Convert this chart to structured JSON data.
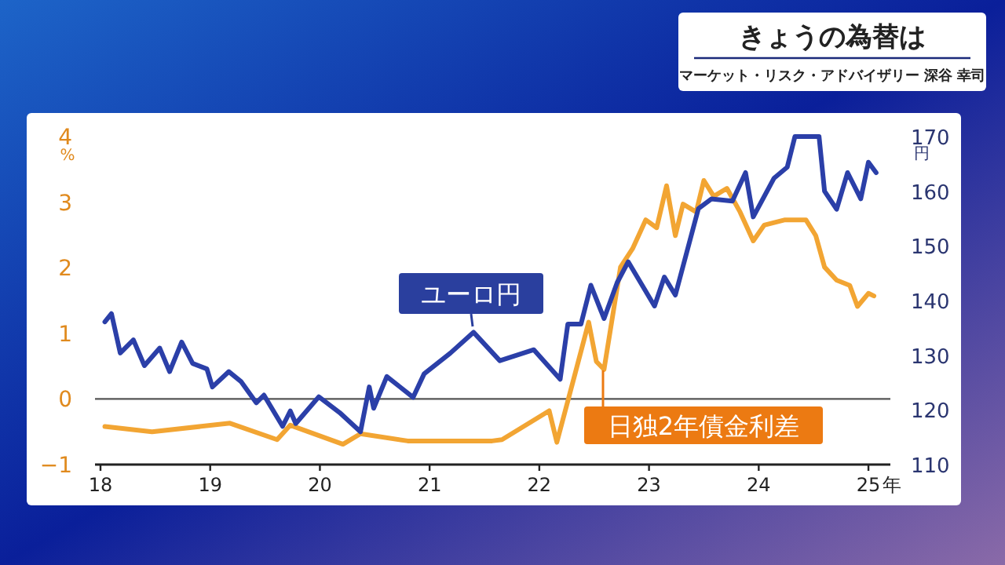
{
  "chart_data": {
    "type": "line",
    "title": "きょうの為替は",
    "subtitle": "マーケット・リスク・アドバイザリー 深谷 幸司",
    "ylabel": "%",
    "y2label": "円",
    "xlim": [
      2017.95,
      2025.2
    ],
    "xticks": [
      {
        "value": 2018,
        "label": "18"
      },
      {
        "value": 2019,
        "label": "19"
      },
      {
        "value": 2020,
        "label": "20"
      },
      {
        "value": 2021,
        "label": "21"
      },
      {
        "value": 2022,
        "label": "22"
      },
      {
        "value": 2023,
        "label": "23"
      },
      {
        "value": 2024,
        "label": "24"
      },
      {
        "value": 2025,
        "label": "25"
      }
    ],
    "xlabel": "年",
    "ylim": [
      -1,
      4
    ],
    "yticks": [
      {
        "value": -1,
        "label": "−1"
      },
      0,
      1,
      2,
      3,
      4
    ],
    "y2lim": [
      110,
      170
    ],
    "y2ticks": [
      110,
      120,
      130,
      140,
      150,
      160,
      170
    ],
    "ref_lines": [
      {
        "axis": "y",
        "value": 0,
        "color": "#555555"
      }
    ],
    "series": [
      {
        "name": "ユーロ円",
        "color": "#2b3fa8",
        "axis": "y2",
        "x": [
          2018.04,
          2018.1,
          2018.18,
          2018.3,
          2018.4,
          2018.54,
          2018.63,
          2018.74,
          2018.84,
          2018.97,
          2019.02,
          2019.17,
          2019.28,
          2019.42,
          2019.49,
          2019.66,
          2019.73,
          2019.78,
          2019.99,
          2020.18,
          2020.37,
          2020.45,
          2020.49,
          2020.61,
          2020.85,
          2020.95,
          2021.19,
          2021.4,
          2021.64,
          2021.95,
          2022.19,
          2022.26,
          2022.38,
          2022.47,
          2022.59,
          2022.71,
          2022.81,
          2023.05,
          2023.14,
          2023.24,
          2023.45,
          2023.57,
          2023.76,
          2023.88,
          2023.95,
          2024.14,
          2024.26,
          2024.33,
          2024.55,
          2024.6,
          2024.71,
          2024.81,
          2024.93,
          2025.0,
          2025.07
        ],
        "values": [
          136.1,
          137.6,
          130.4,
          132.8,
          128.1,
          131.3,
          127,
          132.4,
          128.5,
          127.5,
          124.2,
          127,
          125.2,
          121.3,
          122.7,
          117,
          119.8,
          117.5,
          122.4,
          119.5,
          116,
          124.2,
          120.3,
          126.1,
          122.3,
          126.6,
          130.4,
          134.2,
          129,
          131,
          125.6,
          135.7,
          135.7,
          142.8,
          136.7,
          143.3,
          147.1,
          139,
          144.3,
          141,
          156.8,
          158.6,
          158.2,
          163.4,
          155.3,
          162.4,
          164.4,
          170,
          170,
          160,
          156.7,
          163.4,
          158.6,
          165.3,
          163.4
        ]
      },
      {
        "name": "日独2年債金利差",
        "color": "#f2a533",
        "axis": "y",
        "x": [
          2018.04,
          2018.47,
          2019.18,
          2019.61,
          2019.73,
          2020.21,
          2020.37,
          2020.8,
          2021.57,
          2021.66,
          2022.09,
          2022.16,
          2022.33,
          2022.45,
          2022.52,
          2022.59,
          2022.74,
          2022.85,
          2022.97,
          2023.07,
          2023.16,
          2023.24,
          2023.31,
          2023.43,
          2023.5,
          2023.59,
          2023.71,
          2023.83,
          2023.95,
          2024.05,
          2024.24,
          2024.43,
          2024.52,
          2024.6,
          2024.71,
          2024.83,
          2024.9,
          2025.0,
          2025.05
        ],
        "values": [
          -0.42,
          -0.5,
          -0.37,
          -0.62,
          -0.4,
          -0.69,
          -0.53,
          -0.64,
          -0.64,
          -0.62,
          -0.18,
          -0.66,
          0.41,
          1.17,
          0.57,
          0.45,
          2.01,
          2.29,
          2.73,
          2.61,
          3.25,
          2.49,
          2.97,
          2.85,
          3.33,
          3.09,
          3.21,
          2.85,
          2.41,
          2.65,
          2.73,
          2.73,
          2.49,
          2.01,
          1.81,
          1.73,
          1.41,
          1.61,
          1.57
        ]
      }
    ]
  }
}
